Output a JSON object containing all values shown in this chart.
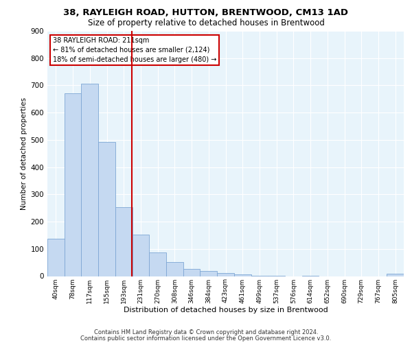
{
  "title1": "38, RAYLEIGH ROAD, HUTTON, BRENTWOOD, CM13 1AD",
  "title2": "Size of property relative to detached houses in Brentwood",
  "xlabel": "Distribution of detached houses by size in Brentwood",
  "ylabel": "Number of detached properties",
  "bin_labels": [
    "40sqm",
    "78sqm",
    "117sqm",
    "155sqm",
    "193sqm",
    "231sqm",
    "270sqm",
    "308sqm",
    "346sqm",
    "384sqm",
    "423sqm",
    "461sqm",
    "499sqm",
    "537sqm",
    "576sqm",
    "614sqm",
    "652sqm",
    "690sqm",
    "729sqm",
    "767sqm",
    "805sqm"
  ],
  "bar_values": [
    138,
    672,
    705,
    493,
    253,
    152,
    87,
    51,
    27,
    20,
    12,
    7,
    2,
    1,
    0,
    1,
    0,
    0,
    0,
    0,
    8
  ],
  "bar_color": "#c5d9f1",
  "bar_edge_color": "#7da6d4",
  "annotation_title": "38 RAYLEIGH ROAD: 211sqm",
  "annotation_line1": "← 81% of detached houses are smaller (2,124)",
  "annotation_line2": "18% of semi-detached houses are larger (480) →",
  "annotation_box_color": "#ffffff",
  "annotation_box_edge": "#cc0000",
  "vline_color": "#cc0000",
  "vline_x": 4.47,
  "ylim": [
    0,
    900
  ],
  "yticks": [
    0,
    100,
    200,
    300,
    400,
    500,
    600,
    700,
    800,
    900
  ],
  "footer1": "Contains HM Land Registry data © Crown copyright and database right 2024.",
  "footer2": "Contains public sector information licensed under the Open Government Licence v3.0.",
  "plot_bg_color": "#e8f4fb"
}
